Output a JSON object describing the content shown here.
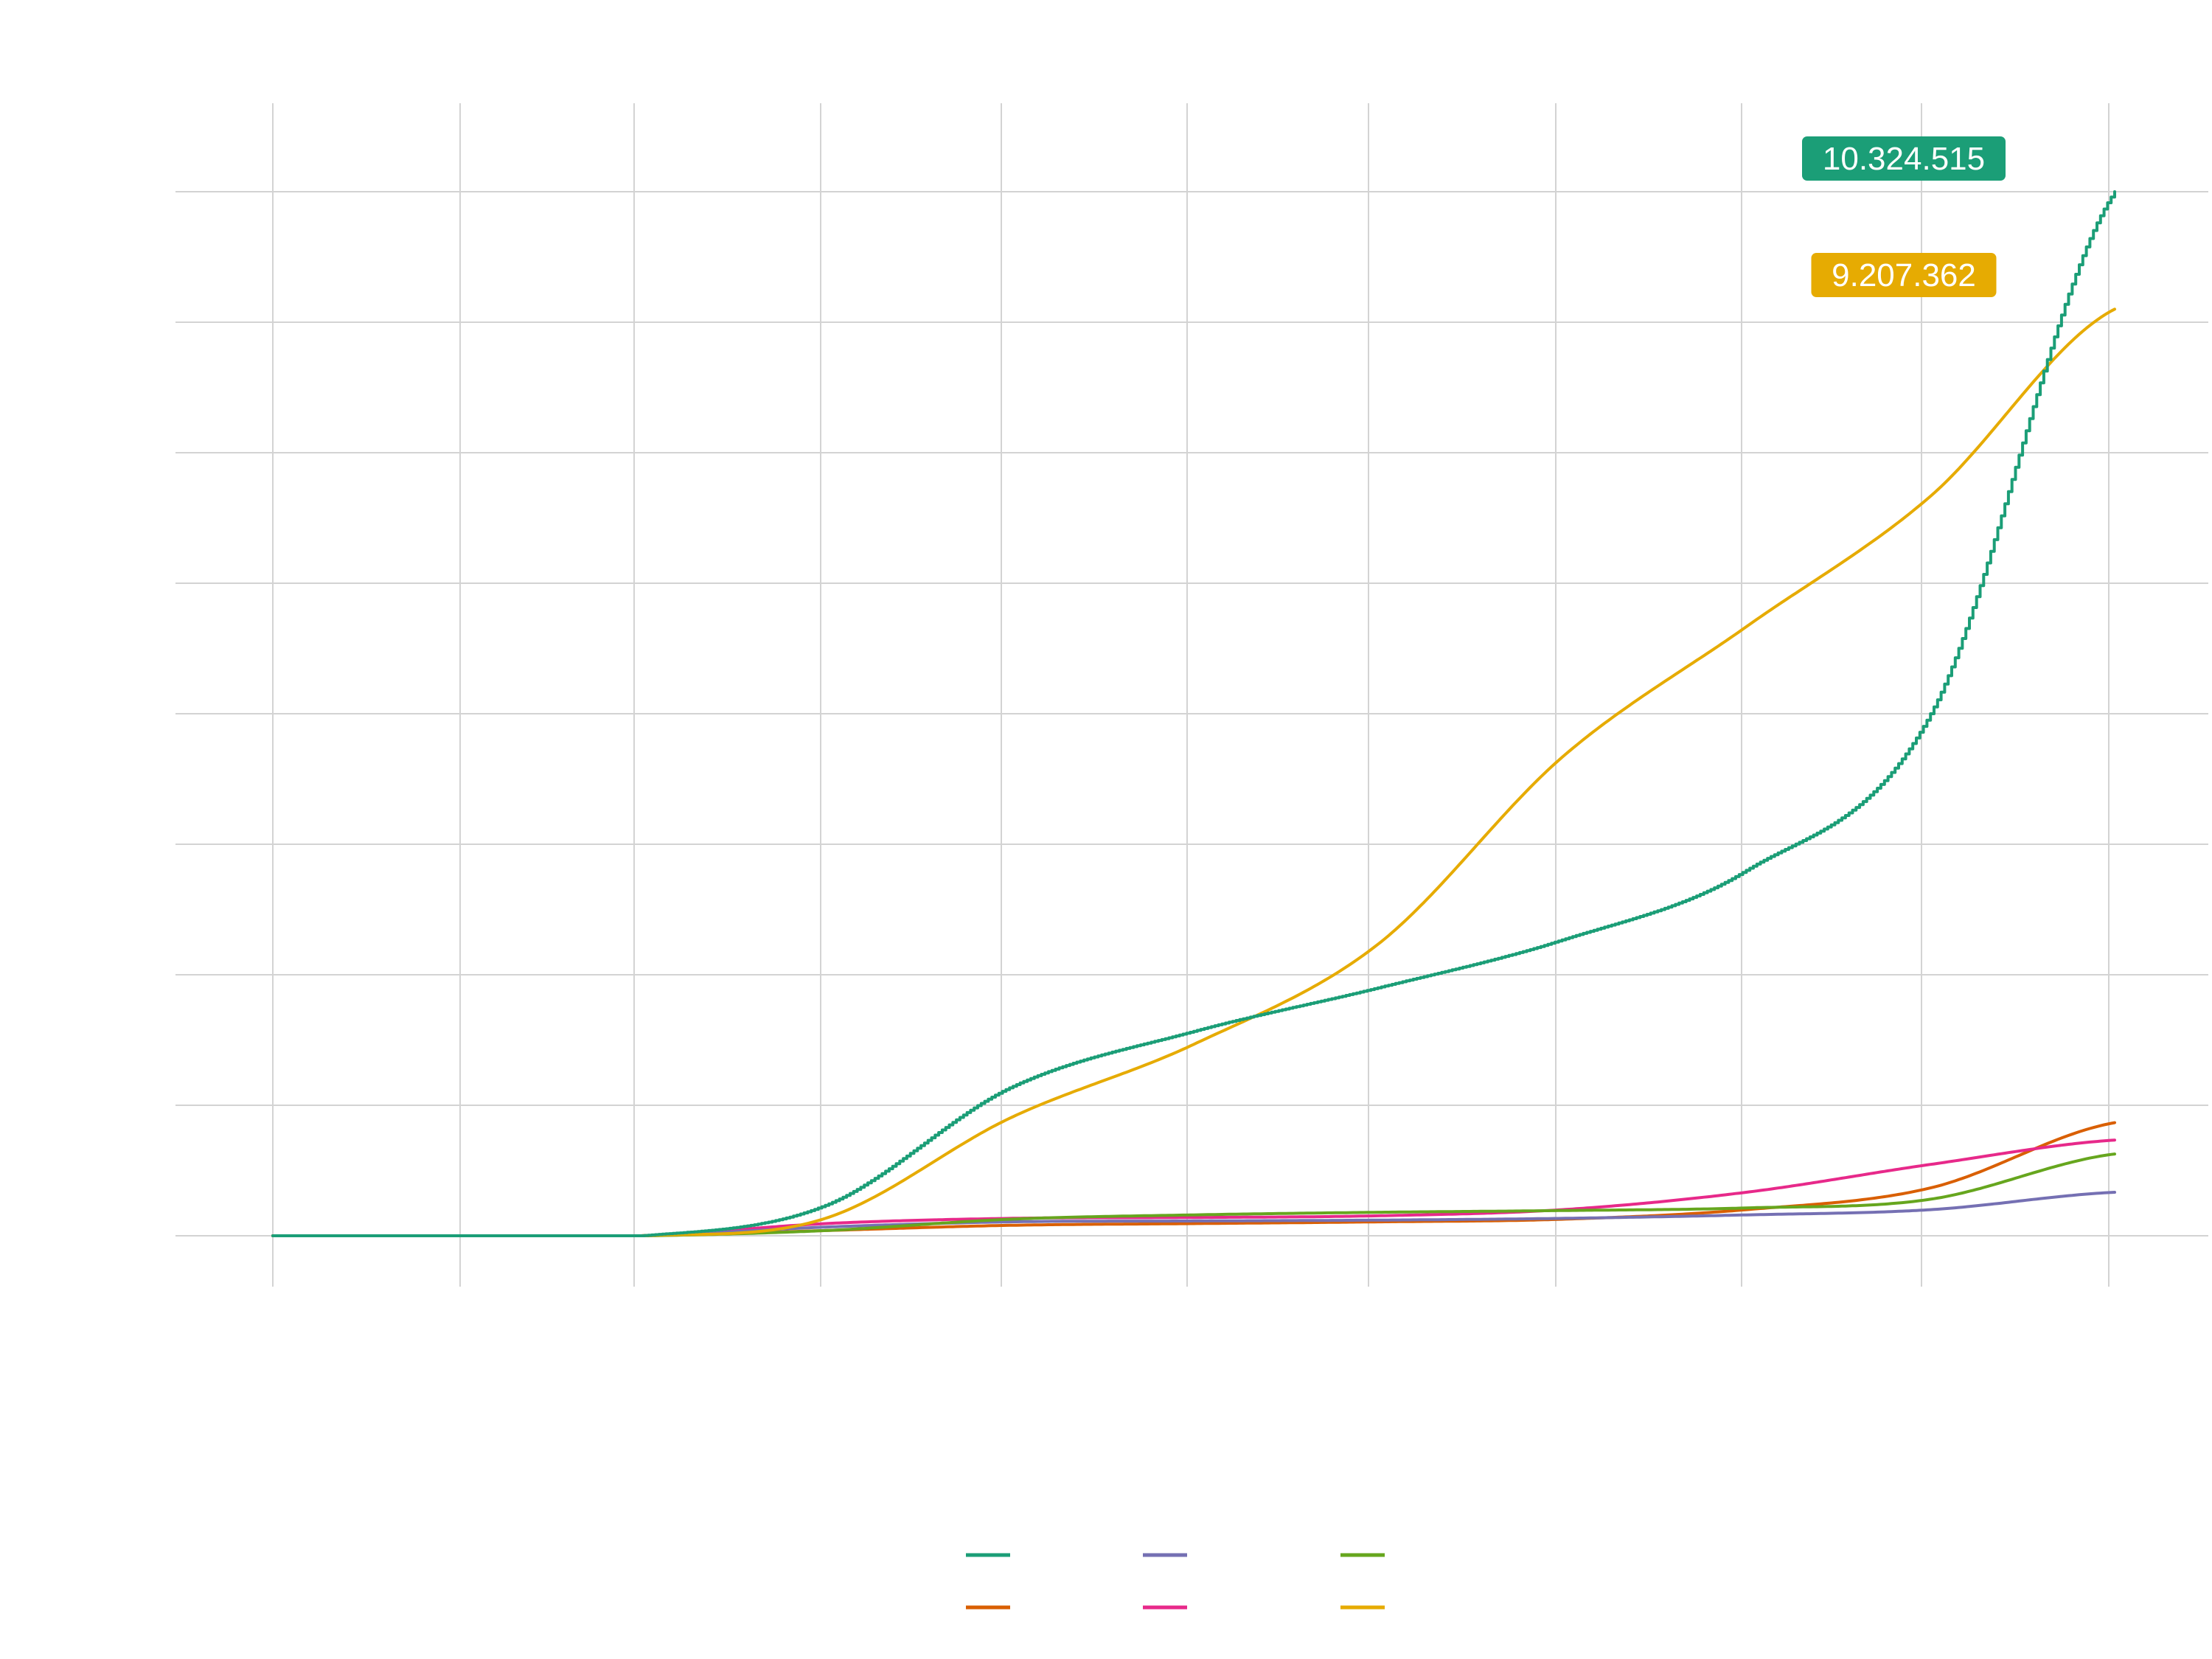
{
  "chart_data": {
    "type": "line",
    "title": "",
    "xlabel": "",
    "ylabel": "",
    "x_points": 11,
    "ylim": [
      -0.5,
      12
    ],
    "grid": true,
    "legend_placement": "bottom",
    "series": [
      {
        "color": "#1B9E77",
        "step": true,
        "end_label": "10.324.515",
        "values": [
          0,
          0,
          0,
          0.35,
          1.7,
          2.35,
          2.85,
          3.4,
          4.2,
          6.0,
          12.0
        ]
      },
      {
        "color": "#E6AB02",
        "step": false,
        "end_label": "9.207.362",
        "values": [
          0,
          0,
          0,
          0.2,
          1.35,
          2.2,
          3.35,
          5.5,
          7.0,
          8.5,
          10.65
        ]
      },
      {
        "color": "#D95F02",
        "step": false,
        "end_label": null,
        "values": [
          0,
          0,
          0,
          0.06,
          0.12,
          0.14,
          0.16,
          0.19,
          0.3,
          0.55,
          1.3
        ]
      },
      {
        "color": "#E7298A",
        "step": false,
        "end_label": null,
        "values": [
          0,
          0,
          0,
          0.14,
          0.2,
          0.21,
          0.23,
          0.3,
          0.5,
          0.82,
          1.1
        ]
      },
      {
        "color": "#7570B3",
        "step": false,
        "end_label": null,
        "values": [
          0,
          0,
          0,
          0.1,
          0.16,
          0.17,
          0.18,
          0.2,
          0.24,
          0.3,
          0.5
        ]
      },
      {
        "color": "#66A61E",
        "step": false,
        "end_label": null,
        "values": [
          0,
          0,
          0,
          0.06,
          0.19,
          0.24,
          0.27,
          0.29,
          0.32,
          0.42,
          0.94
        ]
      }
    ],
    "legend": [
      {
        "color": "#1B9E77"
      },
      {
        "color": "#7570B3"
      },
      {
        "color": "#66A61E"
      },
      {
        "color": "#D95F02"
      },
      {
        "color": "#E7298A"
      },
      {
        "color": "#E6AB02"
      }
    ]
  }
}
